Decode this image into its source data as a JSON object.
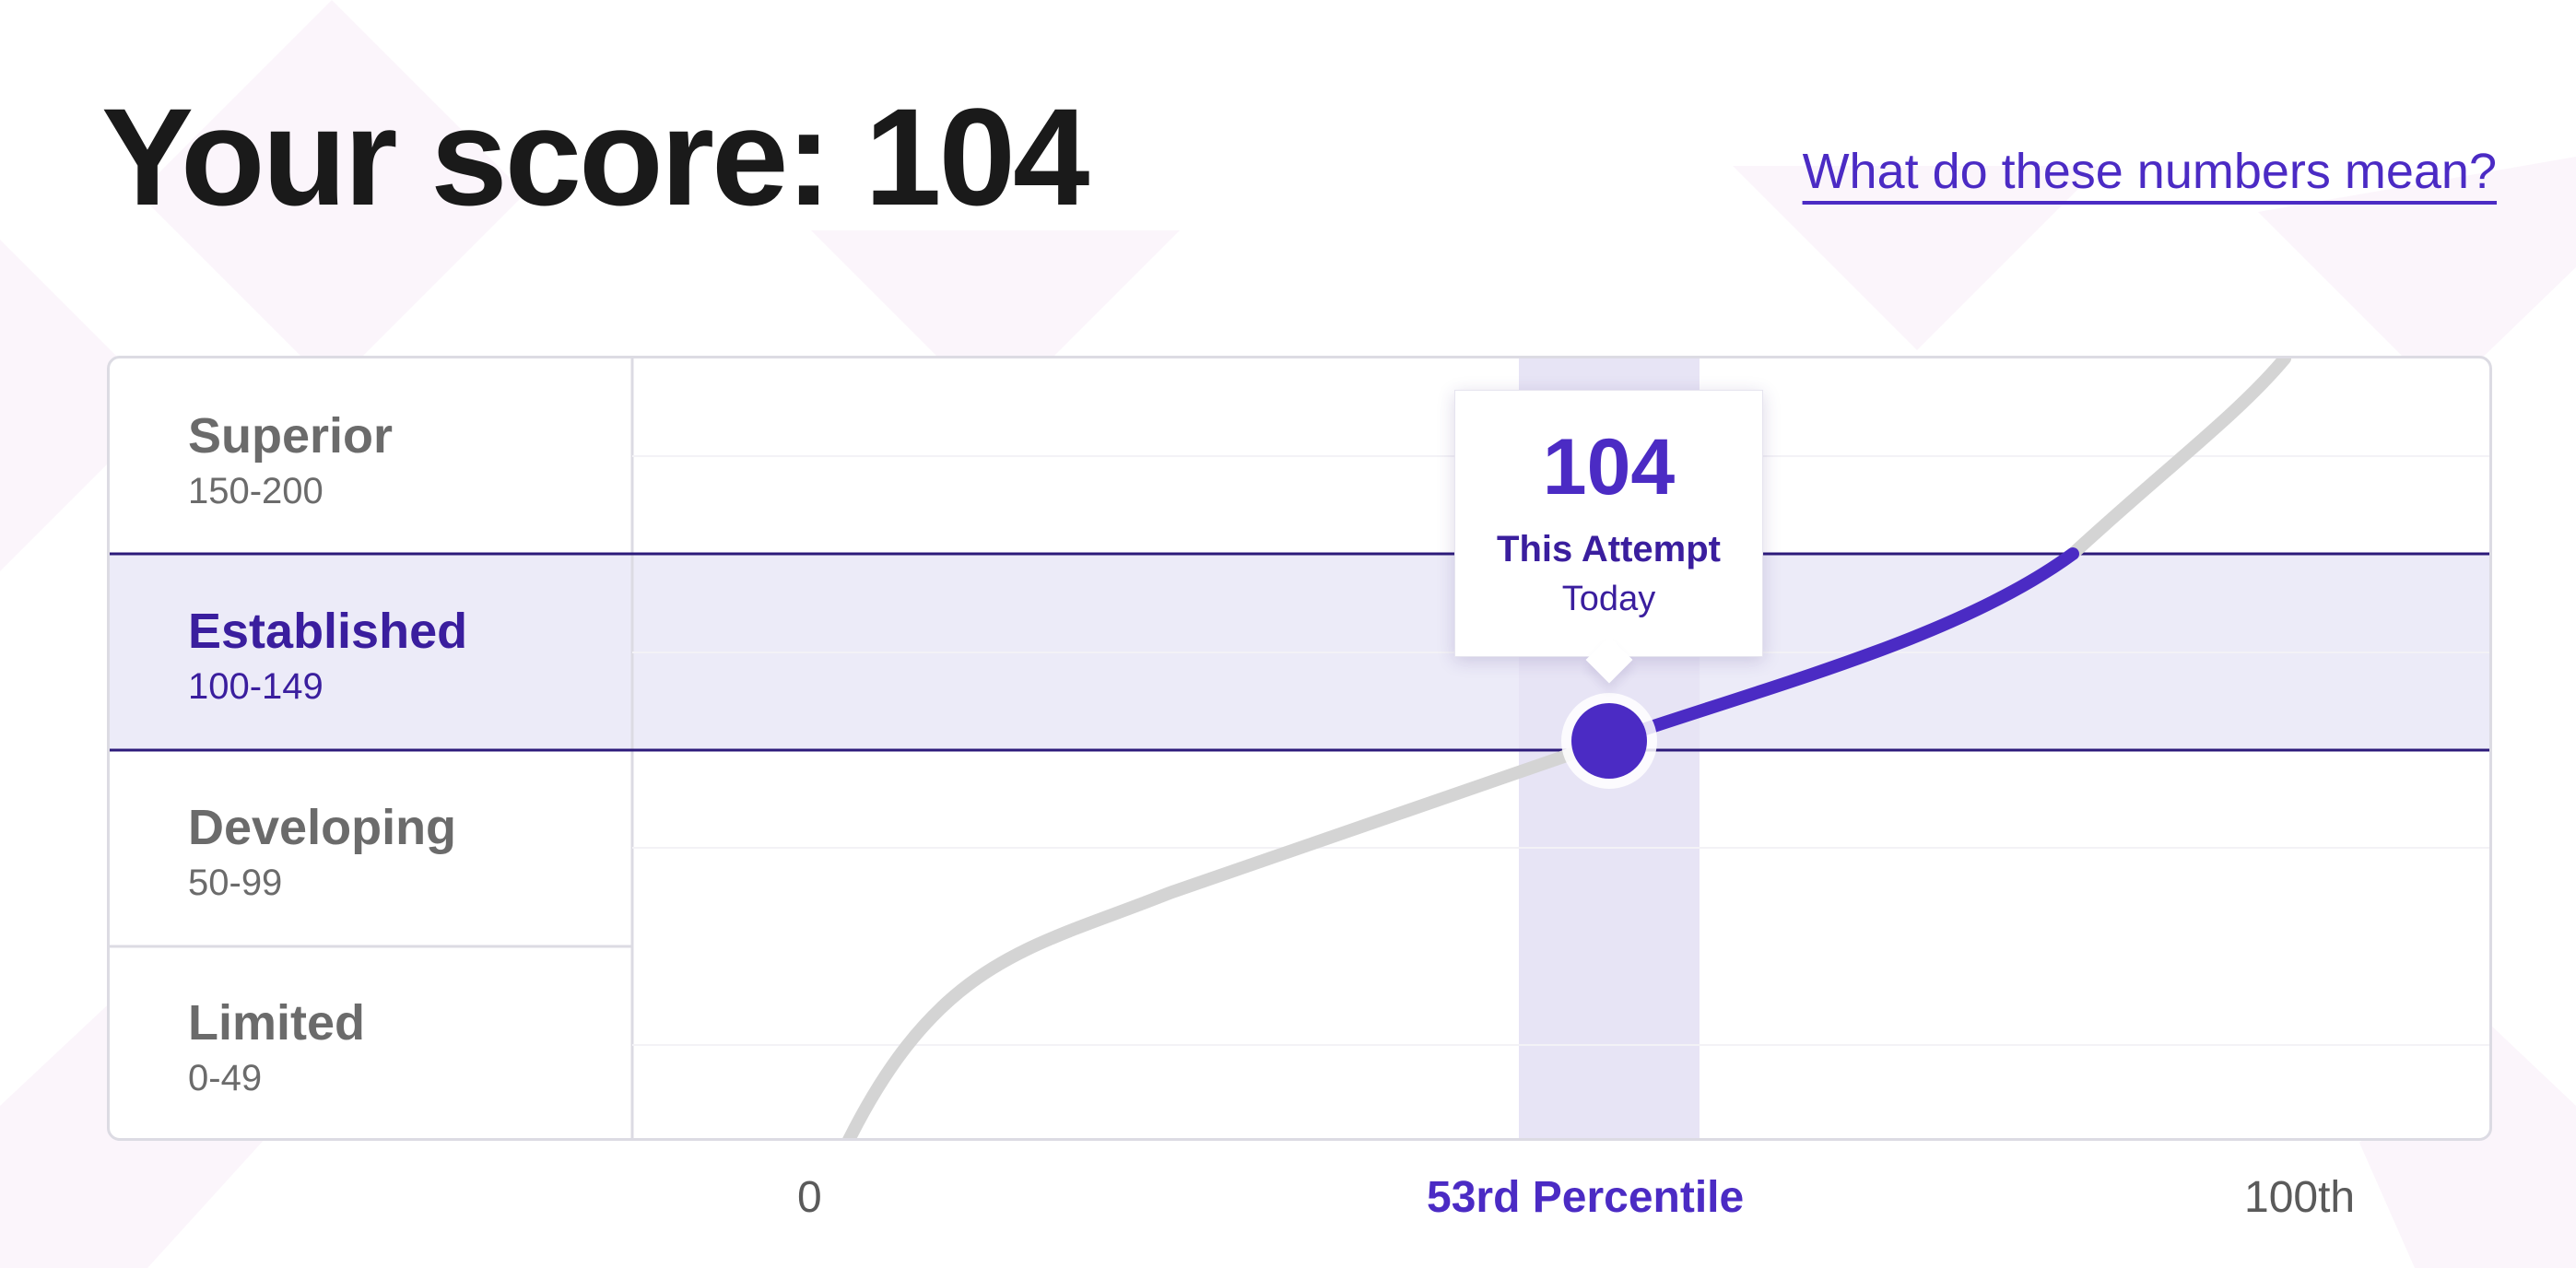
{
  "header": {
    "title": "Your score: 104",
    "help_link": "What do these numbers mean?"
  },
  "bands": [
    {
      "name": "Superior",
      "range": "150-200",
      "min": 150,
      "max": 200,
      "active": false
    },
    {
      "name": "Established",
      "range": "100-149",
      "min": 100,
      "max": 149,
      "active": true
    },
    {
      "name": "Developing",
      "range": "50-99",
      "min": 50,
      "max": 99,
      "active": false
    },
    {
      "name": "Limited",
      "range": "0-49",
      "min": 0,
      "max": 49,
      "active": false
    }
  ],
  "tooltip": {
    "score": "104",
    "label": "This Attempt",
    "date": "Today"
  },
  "x_axis": {
    "start": "0",
    "current": "53rd Percentile",
    "end": "100th"
  },
  "colors": {
    "accent": "#4b2bc4",
    "accent_dark": "#3a1e9e",
    "band_highlight": "#ecebf8",
    "curve_inactive": "#d4d4d4"
  },
  "chart_data": {
    "type": "line",
    "score": 104,
    "percentile": 53,
    "score_range": [
      0,
      200
    ],
    "percentile_range": [
      0,
      100
    ]
  }
}
